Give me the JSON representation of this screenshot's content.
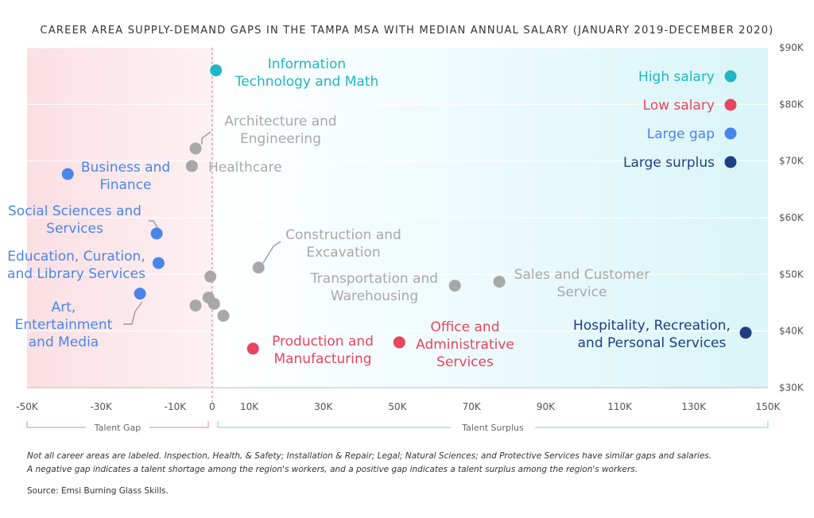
{
  "chart_data": {
    "type": "scatter",
    "title": "CAREER AREA SUPPLY-DEMAND GAPS IN THE TAMPA MSA WITH MEDIAN ANNUAL SALARY (JANUARY 2019-DECEMBER 2020)",
    "xlim": [
      -50000,
      150000
    ],
    "ylim": [
      30000,
      90000
    ],
    "x_ticks": [
      {
        "value": -50000,
        "label": "-50K"
      },
      {
        "value": -30000,
        "label": "-30K"
      },
      {
        "value": -10000,
        "label": "-10K"
      },
      {
        "value": 0,
        "label": "0"
      },
      {
        "value": 10000,
        "label": "10K"
      },
      {
        "value": 30000,
        "label": "30K"
      },
      {
        "value": 50000,
        "label": "50K"
      },
      {
        "value": 70000,
        "label": "70K"
      },
      {
        "value": 90000,
        "label": "90K"
      },
      {
        "value": 110000,
        "label": "110K"
      },
      {
        "value": 130000,
        "label": "130K"
      },
      {
        "value": 150000,
        "label": "150K"
      }
    ],
    "y_ticks": [
      {
        "value": 90000,
        "label": "$90K"
      },
      {
        "value": 80000,
        "label": "$80K"
      },
      {
        "value": 70000,
        "label": "$70K"
      },
      {
        "value": 60000,
        "label": "$60K"
      },
      {
        "value": 50000,
        "label": "$50K"
      },
      {
        "value": 40000,
        "label": "$40K"
      },
      {
        "value": 30000,
        "label": "$30K"
      }
    ],
    "ranges": {
      "gap_label": "Talent Gap",
      "surplus_label": "Talent Surplus"
    },
    "colors": {
      "high_salary": "#1fb7c3",
      "low_salary": "#e8455e",
      "large_gap": "#4a86ea",
      "large_surplus": "#1f3f85",
      "other": "#a8a8a8",
      "gap_region": "#fbe0e4",
      "surplus_region": "#dff6f8"
    },
    "legend": {
      "placement": "top-right",
      "items": [
        {
          "label": "High salary",
          "category": "high_salary"
        },
        {
          "label": "Low salary",
          "category": "low_salary"
        },
        {
          "label": "Large gap",
          "category": "large_gap"
        },
        {
          "label": "Large surplus",
          "category": "large_surplus"
        }
      ]
    },
    "points": [
      {
        "x": 1000,
        "y": 86000,
        "category": "high_salary",
        "label": [
          "Information",
          "Technology and Math"
        ]
      },
      {
        "x": -4500,
        "y": 72200,
        "category": "other",
        "label": [
          "Architecture and",
          "Engineering"
        ]
      },
      {
        "x": -5500,
        "y": 69100,
        "category": "other",
        "label": [
          "Healthcare"
        ]
      },
      {
        "x": -39000,
        "y": 67700,
        "category": "large_gap",
        "label": [
          "Business and",
          "Finance"
        ]
      },
      {
        "x": -15000,
        "y": 57200,
        "category": "large_gap",
        "label": [
          "Social Sciences and",
          "Services"
        ]
      },
      {
        "x": -14500,
        "y": 52000,
        "category": "large_gap",
        "label": [
          "Education, Curation,",
          "and Library Services"
        ]
      },
      {
        "x": 12500,
        "y": 51200,
        "category": "other",
        "label": [
          "Construction and",
          "Excavation"
        ]
      },
      {
        "x": -500,
        "y": 49600,
        "category": "other",
        "label": []
      },
      {
        "x": 65500,
        "y": 48000,
        "category": "other",
        "label": [
          "Transportation and",
          "Warehousing"
        ]
      },
      {
        "x": 77500,
        "y": 48700,
        "category": "other",
        "label": [
          "Sales and Customer",
          "Service"
        ]
      },
      {
        "x": -19500,
        "y": 46600,
        "category": "large_gap",
        "label": [
          "Art,",
          "Entertainment",
          "and Media"
        ]
      },
      {
        "x": -1000,
        "y": 45900,
        "category": "other",
        "label": []
      },
      {
        "x": -4500,
        "y": 44500,
        "category": "other",
        "label": []
      },
      {
        "x": 500,
        "y": 44800,
        "category": "other",
        "label": []
      },
      {
        "x": 3000,
        "y": 42700,
        "category": "other",
        "label": []
      },
      {
        "x": 144000,
        "y": 39700,
        "category": "large_surplus",
        "label": [
          "Hospitality, Recreation,",
          "and Personal Services"
        ]
      },
      {
        "x": 50500,
        "y": 38000,
        "category": "low_salary",
        "label": [
          "Office and",
          "Administrative",
          "Services"
        ]
      },
      {
        "x": 11000,
        "y": 36900,
        "category": "low_salary",
        "label": [
          "Production and",
          "Manufacturing"
        ]
      }
    ]
  },
  "notes": {
    "line1": "Not all career areas are labeled. Inspection, Health, & Safety; Installation & Repair; Legal; Natural Sciences; and Protective Services have similar gaps and salaries.",
    "line2": "A negative gap indicates a talent shortage among the region's workers, and a positive gap indicates a talent surplus among the region's workers.",
    "source": "Source: Emsi Burning Glass Skills."
  }
}
